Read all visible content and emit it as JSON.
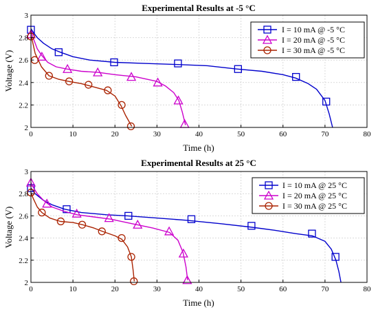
{
  "chart_data": [
    {
      "type": "line",
      "title": "Experimental Results at -5 °C",
      "xlabel": "Time (h)",
      "ylabel": "Voltage (V)",
      "xlim": [
        0,
        80
      ],
      "ylim": [
        2,
        3
      ],
      "xticks": [
        "0",
        "10",
        "20",
        "30",
        "40",
        "50",
        "60",
        "70",
        "80"
      ],
      "yticks": [
        "2",
        "2.2",
        "2.4",
        "2.6",
        "2.8",
        "3"
      ],
      "grid": true,
      "legend_position": "top-right",
      "series": [
        {
          "name": "I = 10 mA @ -5 °C",
          "color": "#0000cc",
          "marker": "square",
          "x": [
            0,
            0.5,
            1.5,
            3,
            5,
            7,
            10,
            14,
            20,
            27,
            35,
            42,
            49,
            55,
            60,
            63,
            66,
            68,
            70,
            71,
            71.8
          ],
          "y": [
            2.88,
            2.85,
            2.8,
            2.75,
            2.7,
            2.67,
            2.63,
            2.6,
            2.58,
            2.57,
            2.56,
            2.55,
            2.52,
            2.5,
            2.47,
            2.44,
            2.39,
            2.34,
            2.24,
            2.12,
            2.0
          ],
          "marker_x": [
            0,
            6.6,
            19.8,
            35,
            49.3,
            63.1,
            70.3
          ],
          "marker_y": [
            2.87,
            2.67,
            2.58,
            2.57,
            2.52,
            2.45,
            2.23
          ]
        },
        {
          "name": "I = 20 mA @ -5 °C",
          "color": "#cc00cc",
          "marker": "triangle",
          "x": [
            0,
            0.5,
            1.5,
            2.6,
            4,
            6,
            8.5,
            12,
            16,
            20,
            25,
            30,
            32,
            34,
            35.2,
            36,
            36.8
          ],
          "y": [
            2.85,
            2.8,
            2.7,
            2.64,
            2.58,
            2.54,
            2.52,
            2.5,
            2.49,
            2.47,
            2.45,
            2.41,
            2.37,
            2.31,
            2.24,
            2.14,
            2.02
          ],
          "marker_x": [
            0,
            2.6,
            8.7,
            15.9,
            23.9,
            30.2,
            35.1,
            36.6
          ],
          "marker_y": [
            2.83,
            2.63,
            2.52,
            2.49,
            2.45,
            2.4,
            2.24,
            2.03
          ]
        },
        {
          "name": "I = 30 mA @ -5 °C",
          "color": "#aa2200",
          "marker": "circle",
          "x": [
            0,
            0.3,
            1,
            2.5,
            4.3,
            6.5,
            9,
            12,
            14,
            16,
            18,
            20,
            21.5,
            22.5,
            23.4,
            24
          ],
          "y": [
            2.82,
            2.78,
            2.66,
            2.54,
            2.46,
            2.43,
            2.41,
            2.39,
            2.37,
            2.35,
            2.33,
            2.28,
            2.19,
            2.11,
            2.05,
            2.01
          ],
          "marker_x": [
            0,
            0.9,
            4.3,
            9.1,
            13.7,
            18.3,
            21.6,
            23.8
          ],
          "marker_y": [
            2.81,
            2.6,
            2.46,
            2.41,
            2.38,
            2.33,
            2.2,
            2.01
          ]
        }
      ]
    },
    {
      "type": "line",
      "title": "Experimental Results at 25 °C",
      "xlabel": "Time (h)",
      "ylabel": "Voltage (V)",
      "xlim": [
        0,
        80
      ],
      "ylim": [
        2,
        3
      ],
      "xticks": [
        "0",
        "10",
        "20",
        "30",
        "40",
        "50",
        "60",
        "70",
        "80"
      ],
      "yticks": [
        "2",
        "2.2",
        "2.4",
        "2.6",
        "2.8",
        "3"
      ],
      "grid": true,
      "legend_position": "top-right",
      "series": [
        {
          "name": "I = 10 mA @ 25 °C",
          "color": "#0000cc",
          "marker": "square",
          "x": [
            0,
            1,
            3,
            5,
            8,
            12,
            18,
            23,
            30,
            37,
            45,
            52,
            58,
            63,
            67,
            70,
            71.5,
            72.6,
            73.3,
            73.8
          ],
          "y": [
            2.85,
            2.8,
            2.74,
            2.7,
            2.66,
            2.63,
            2.61,
            2.6,
            2.58,
            2.56,
            2.53,
            2.5,
            2.47,
            2.44,
            2.42,
            2.37,
            2.3,
            2.2,
            2.1,
            2.0
          ],
          "marker_x": [
            0,
            8.5,
            23.2,
            38.2,
            52.5,
            66.9,
            72.5
          ],
          "marker_y": [
            2.85,
            2.66,
            2.6,
            2.57,
            2.51,
            2.44,
            2.23
          ]
        },
        {
          "name": "I = 20 mA @ 25 °C",
          "color": "#cc00cc",
          "marker": "triangle",
          "x": [
            0,
            0.5,
            1.5,
            3,
            5,
            8,
            11,
            15,
            19,
            24,
            29,
            33,
            35,
            36.2,
            36.9,
            37.3
          ],
          "y": [
            2.9,
            2.86,
            2.8,
            2.74,
            2.68,
            2.64,
            2.61,
            2.59,
            2.57,
            2.53,
            2.49,
            2.45,
            2.38,
            2.27,
            2.14,
            2.02
          ],
          "marker_x": [
            0,
            3.8,
            10.9,
            18.6,
            25.4,
            32.9,
            36.3,
            37.2
          ],
          "marker_y": [
            2.9,
            2.71,
            2.62,
            2.58,
            2.52,
            2.46,
            2.26,
            2.02
          ]
        },
        {
          "name": "I = 30 mA @ 25 °C",
          "color": "#aa2200",
          "marker": "circle",
          "x": [
            0,
            0.5,
            1.5,
            2.6,
            4.5,
            7,
            10,
            12.3,
            15,
            17,
            20,
            21.6,
            23,
            23.9,
            24.3,
            24.6
          ],
          "y": [
            2.81,
            2.76,
            2.68,
            2.63,
            2.58,
            2.55,
            2.54,
            2.52,
            2.49,
            2.46,
            2.42,
            2.39,
            2.32,
            2.23,
            2.12,
            2.01
          ],
          "marker_x": [
            0,
            2.6,
            7.1,
            12.2,
            16.9,
            21.6,
            23.9,
            24.5
          ],
          "marker_y": [
            2.81,
            2.63,
            2.55,
            2.52,
            2.46,
            2.4,
            2.23,
            2.01
          ]
        }
      ]
    }
  ]
}
